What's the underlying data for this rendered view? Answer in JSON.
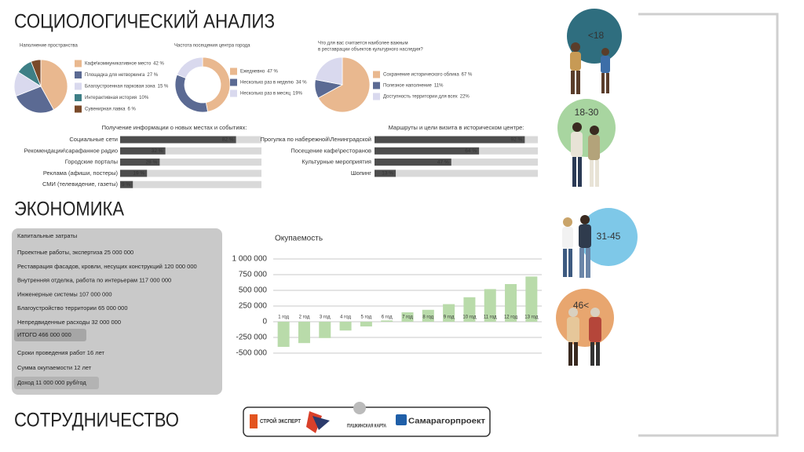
{
  "headings": {
    "sociology": "СОЦИОЛОГИЧЕСКИЙ АНАЛИЗ",
    "economy": "ЭКОНОМИКА",
    "cooperation": "СОТРУДНИЧЕСТВО"
  },
  "chart_data": [
    {
      "type": "pie",
      "title": [
        "Наполнение пространства"
      ],
      "categories": [
        "Кафе\\коммуникативное место",
        "Площадка для нетворкинга",
        "Благоустроенная парковая зона",
        "Интерактивная история",
        "Сувенирная лавка"
      ],
      "values": [
        42,
        27,
        15,
        10,
        6
      ],
      "value_labels": [
        "42 %",
        "27 %",
        "15 %",
        "10%",
        "6 %"
      ],
      "colors": [
        "#e9b88f",
        "#5b6a93",
        "#d9d9ee",
        "#3e7f86",
        "#7a4a2a"
      ]
    },
    {
      "type": "pie",
      "donut": true,
      "title": [
        "Частота посещения центра города"
      ],
      "categories": [
        "Ежедневно",
        "Несколько раз в неделю",
        "Несколько раз в месяц"
      ],
      "values": [
        47,
        34,
        19
      ],
      "value_labels": [
        "47 %",
        "34 %",
        "19%"
      ],
      "colors": [
        "#e9b88f",
        "#5b6a93",
        "#d9d9ee"
      ]
    },
    {
      "type": "pie",
      "title": [
        "Что для вас считается наиболее важным",
        "в реставрации объектов культурного наследия?"
      ],
      "categories": [
        "Сохранение исторического облика",
        "Полезное наполнение",
        "Доступность территории для всех"
      ],
      "values": [
        67,
        11,
        22
      ],
      "value_labels": [
        "67 %",
        "11%",
        "22%"
      ],
      "colors": [
        "#e9b88f",
        "#5b6a93",
        "#d9d9ee"
      ]
    },
    {
      "type": "hbar",
      "title": "Получение информации о новых местах и событиях:",
      "categories": [
        "Социальные сети",
        "Рекомендации\\сарафанное радио",
        "Городские порталы",
        "Реклама (афиши, постеры)",
        "СМИ (телевидение, газеты)"
      ],
      "values": [
        82,
        32,
        28,
        19,
        9
      ],
      "value_labels": [
        "82 %",
        "32 %",
        "28 %",
        "19 %",
        "9 %"
      ],
      "xlim": [
        0,
        100
      ],
      "color": "#4d4d4d",
      "track_color": "#d9d9d9"
    },
    {
      "type": "hbar",
      "title": "Маршруты и цели визита в историческом центре:",
      "categories": [
        "Прогулка по набережной\\Ленинградской",
        "Посещение кафе\\ресторанов",
        "Культурные мероприятия",
        "Шопинг"
      ],
      "values": [
        92,
        64,
        47,
        13
      ],
      "value_labels": [
        "92 %",
        "64 %",
        "47 %",
        "13 %"
      ],
      "xlim": [
        0,
        100
      ],
      "color": "#4d4d4d",
      "track_color": "#d9d9d9"
    },
    {
      "type": "bar",
      "title": "Окупаемость",
      "categories": [
        "1 год",
        "2 год",
        "3 год",
        "4 год",
        "5 год",
        "6 год",
        "7 год",
        "8 год",
        "9 год",
        "10 год",
        "11 год",
        "12 год",
        "13 год"
      ],
      "values": [
        -400000,
        -340000,
        -260000,
        -140000,
        -75000,
        20000,
        150000,
        190000,
        280000,
        390000,
        520000,
        600000,
        720000
      ],
      "ylim": [
        -500000,
        1000000
      ],
      "yticks": [
        {
          "value": 1000000,
          "label": "1 000 000"
        },
        {
          "value": 750000,
          "label": "750 000"
        },
        {
          "value": 500000,
          "label": "500 000"
        },
        {
          "value": 250000,
          "label": "250 000"
        },
        0,
        {
          "value": -250000,
          "label": "-250 000"
        },
        {
          "value": -500000,
          "label": "-500 000"
        }
      ],
      "grid": true,
      "color": "#b9dbaa"
    }
  ],
  "economics": {
    "title": "Капитальные затраты",
    "items": [
      "Проектные работы, экспертиза 25 000 000",
      "Реставрация фасадов, кровли, несущих конструкций 120 000 000",
      "Внутренняя отделка, работа по интерьерам 117 000 000",
      "Инженерные системы 107 000 000",
      "Благоустройство территории 65 000 000",
      "Непредвиденные расходы 32 000 000"
    ],
    "total": "ИТОГО 466 000 000",
    "terms": [
      "Сроки проведения работ 16 лет",
      "Сумма окупаемости 12 лет",
      "Доход 11 000 000 руб/год"
    ]
  },
  "age_groups": [
    "<18",
    "18-30",
    "31-45",
    "46<"
  ],
  "partners": [
    "СТРОЙ ЭКСПЕРТ",
    "ПУШКИНСКАЯ КАРТА",
    "Самарагорпроект"
  ]
}
